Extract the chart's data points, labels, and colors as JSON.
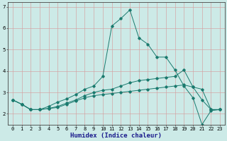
{
  "xlabel": "Humidex (Indice chaleur)",
  "background_color": "#cceae7",
  "grid_color_major": "#d4a0a0",
  "line_color": "#1a7a6e",
  "x_values": [
    0,
    1,
    2,
    3,
    4,
    5,
    6,
    7,
    8,
    9,
    10,
    11,
    12,
    13,
    14,
    15,
    16,
    17,
    18,
    19,
    20,
    21,
    22,
    23
  ],
  "line1": [
    2.65,
    2.45,
    2.2,
    2.2,
    2.25,
    2.3,
    2.45,
    2.6,
    2.75,
    2.85,
    2.9,
    2.95,
    3.0,
    3.05,
    3.1,
    3.15,
    3.2,
    3.25,
    3.3,
    3.35,
    3.25,
    2.65,
    2.2,
    2.2
  ],
  "line2": [
    2.65,
    2.45,
    2.2,
    2.2,
    2.25,
    2.35,
    2.5,
    2.65,
    2.85,
    3.0,
    3.1,
    3.15,
    3.3,
    3.45,
    3.55,
    3.6,
    3.65,
    3.7,
    3.75,
    4.05,
    3.25,
    3.15,
    2.2,
    2.2
  ],
  "line3": [
    2.65,
    2.45,
    2.2,
    2.2,
    2.35,
    2.55,
    2.7,
    2.9,
    3.15,
    3.3,
    3.75,
    6.1,
    6.45,
    6.85,
    5.55,
    5.25,
    4.65,
    4.65,
    4.05,
    3.3,
    2.75,
    1.5,
    2.15,
    2.2
  ],
  "ylim": [
    1.5,
    7.2
  ],
  "yticks": [
    2,
    3,
    4,
    5,
    6,
    7
  ],
  "xlim": [
    -0.5,
    23.5
  ],
  "figsize": [
    3.2,
    2.0
  ],
  "dpi": 100
}
